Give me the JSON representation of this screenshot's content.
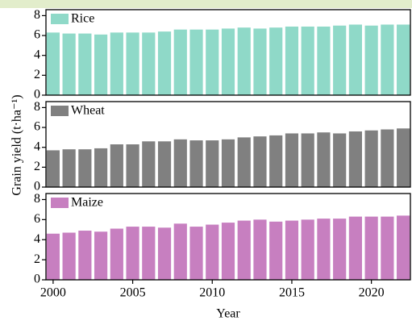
{
  "figure": {
    "ylabel": "Grain yield (t·ha⁻¹)",
    "xlabel": "Year"
  },
  "chart_data": [
    {
      "type": "bar",
      "x": [
        2000,
        2001,
        2002,
        2003,
        2004,
        2005,
        2006,
        2007,
        2008,
        2009,
        2010,
        2011,
        2012,
        2013,
        2014,
        2015,
        2016,
        2017,
        2018,
        2019,
        2020,
        2021,
        2022
      ],
      "series": [
        {
          "name": "Rice",
          "color": "#8fd9c8",
          "values": [
            6.3,
            6.2,
            6.2,
            6.1,
            6.3,
            6.3,
            6.3,
            6.4,
            6.6,
            6.6,
            6.6,
            6.7,
            6.8,
            6.7,
            6.8,
            6.9,
            6.9,
            6.9,
            7.0,
            7.1,
            7.0,
            7.1,
            7.1
          ]
        }
      ],
      "xlim": [
        1999.55,
        2022.45
      ],
      "ylim": [
        0,
        8.6
      ],
      "yticks": [
        0,
        2,
        4,
        6,
        8
      ],
      "legend": "upper left"
    },
    {
      "type": "bar",
      "x": [
        2000,
        2001,
        2002,
        2003,
        2004,
        2005,
        2006,
        2007,
        2008,
        2009,
        2010,
        2011,
        2012,
        2013,
        2014,
        2015,
        2016,
        2017,
        2018,
        2019,
        2020,
        2021,
        2022
      ],
      "series": [
        {
          "name": "Wheat",
          "color": "#808080",
          "values": [
            3.7,
            3.8,
            3.8,
            3.9,
            4.3,
            4.3,
            4.6,
            4.6,
            4.8,
            4.7,
            4.7,
            4.8,
            5.0,
            5.1,
            5.2,
            5.4,
            5.4,
            5.5,
            5.4,
            5.6,
            5.7,
            5.8,
            5.9
          ]
        }
      ],
      "xlim": [
        1999.55,
        2022.45
      ],
      "ylim": [
        0,
        8.6
      ],
      "yticks": [
        0,
        2,
        4,
        6,
        8
      ],
      "legend": "upper left"
    },
    {
      "type": "bar",
      "x": [
        2000,
        2001,
        2002,
        2003,
        2004,
        2005,
        2006,
        2007,
        2008,
        2009,
        2010,
        2011,
        2012,
        2013,
        2014,
        2015,
        2016,
        2017,
        2018,
        2019,
        2020,
        2021,
        2022
      ],
      "series": [
        {
          "name": "Maize",
          "color": "#c77fc0",
          "values": [
            4.6,
            4.7,
            4.9,
            4.8,
            5.1,
            5.3,
            5.3,
            5.2,
            5.6,
            5.3,
            5.5,
            5.7,
            5.9,
            6.0,
            5.8,
            5.9,
            6.0,
            6.1,
            6.1,
            6.3,
            6.3,
            6.3,
            6.4
          ]
        }
      ],
      "xlim": [
        1999.55,
        2022.45
      ],
      "ylim": [
        0,
        8.6
      ],
      "yticks": [
        0,
        2,
        4,
        6,
        8
      ],
      "xticks": [
        2000,
        2005,
        2010,
        2015,
        2020
      ],
      "legend": "upper left"
    }
  ]
}
